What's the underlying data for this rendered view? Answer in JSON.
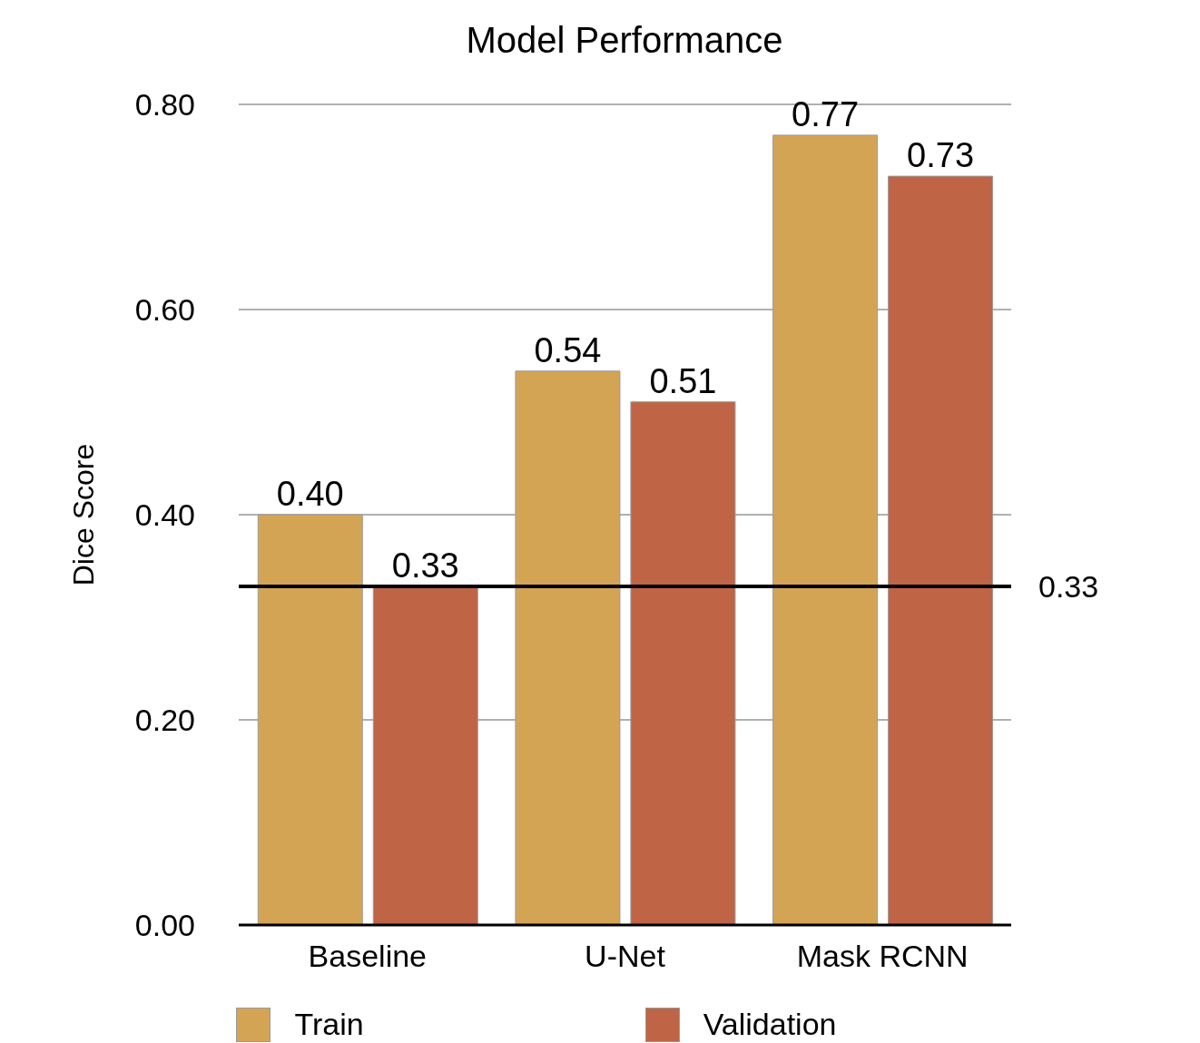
{
  "chart_data": {
    "type": "bar",
    "title": "Model Performance",
    "ylabel": "Dice Score",
    "categories": [
      "Baseline",
      "U-Net",
      "Mask RCNN"
    ],
    "series": [
      {
        "name": "Train",
        "color": "#d4a455",
        "values": [
          0.4,
          0.54,
          0.77
        ],
        "value_labels": [
          "0.40",
          "0.54",
          "0.77"
        ]
      },
      {
        "name": "Validation",
        "color": "#bf6445",
        "values": [
          0.33,
          0.51,
          0.73
        ],
        "value_labels": [
          "0.33",
          "0.51",
          "0.73"
        ]
      }
    ],
    "ylim": [
      0,
      0.8
    ],
    "yticks": [
      {
        "value": 0,
        "label": "0.00"
      },
      {
        "value": 0.2,
        "label": "0.20"
      },
      {
        "value": 0.4,
        "label": "0.40"
      },
      {
        "value": 0.6,
        "label": "0.60"
      },
      {
        "value": 0.8,
        "label": "0.80"
      }
    ],
    "ref_lines": [
      {
        "axis": "y",
        "value": 0.33,
        "label": "0.33",
        "color": "#000000"
      }
    ],
    "grid": "y",
    "legend": "bottom"
  }
}
